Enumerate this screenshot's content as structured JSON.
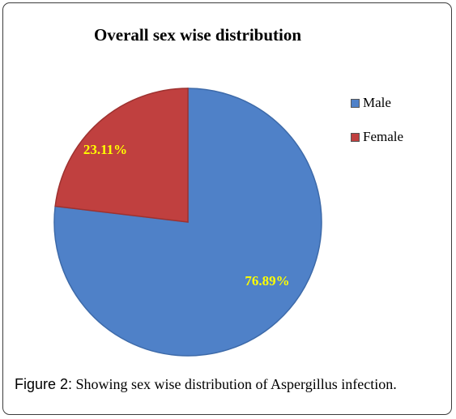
{
  "chart_data": {
    "type": "pie",
    "title": "Overall sex wise distribution",
    "categories": [
      "Male",
      "Female"
    ],
    "values": [
      76.89,
      23.11
    ],
    "value_labels": [
      "76.89%",
      "23.11%"
    ],
    "legend_position": "right",
    "colors": [
      "#4f81c8",
      "#c0403f"
    ],
    "label_color": "#ffff00"
  },
  "caption": {
    "label": "Figure 2:",
    "text": " Showing sex wise distribution of Aspergillus infection."
  }
}
